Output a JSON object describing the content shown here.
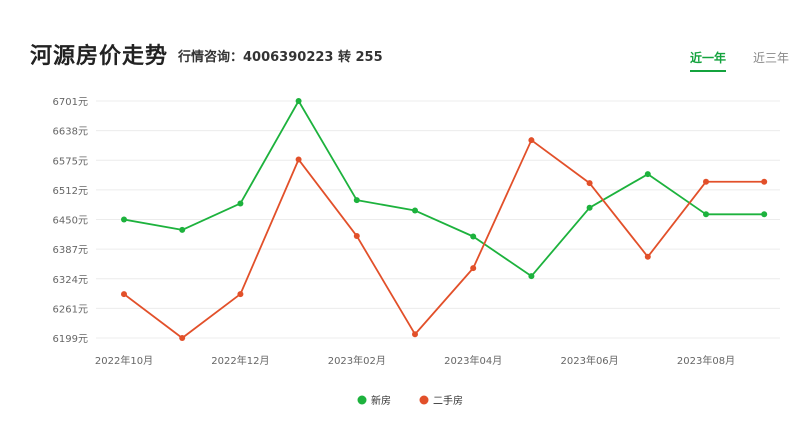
{
  "header": {
    "title": "河源房价走势",
    "hotline": "行情咨询：4006390223 转 255",
    "tabs": [
      {
        "label": "近一年",
        "active": true
      },
      {
        "label": "近三年",
        "active": false
      }
    ]
  },
  "colors": {
    "new_house": "#1db23d",
    "second_hand": "#e2502a",
    "grid": "#ececec",
    "active_tab": "#14a33e"
  },
  "chart_data": {
    "type": "line",
    "title": "",
    "xlabel": "",
    "ylabel": "",
    "yticks": [
      "6199元",
      "6261元",
      "6324元",
      "6387元",
      "6450元",
      "6512元",
      "6575元",
      "6638元",
      "6701元"
    ],
    "ylim": [
      6199,
      6701
    ],
    "x_tick_labels": [
      "2022年10月",
      "2022年12月",
      "2023年02月",
      "2023年04月",
      "2023年06月",
      "2023年08月"
    ],
    "x": [
      "2022-10",
      "2022-11",
      "2022-12",
      "2023-01",
      "2023-02",
      "2023-03",
      "2023-04",
      "2023-05",
      "2023-06",
      "2023-07",
      "2023-08",
      "2023-09"
    ],
    "series": [
      {
        "name": "新房",
        "color": "#1db23d",
        "values": [
          6450,
          6428,
          6484,
          6701,
          6491,
          6469,
          6414,
          6330,
          6475,
          6546,
          6461,
          6461
        ]
      },
      {
        "name": "二手房",
        "color": "#e2502a",
        "values": [
          6292,
          6199,
          6292,
          6577,
          6415,
          6207,
          6347,
          6618,
          6527,
          6371,
          6530,
          6530
        ]
      }
    ],
    "legend_position": "bottom-center",
    "grid": true
  }
}
